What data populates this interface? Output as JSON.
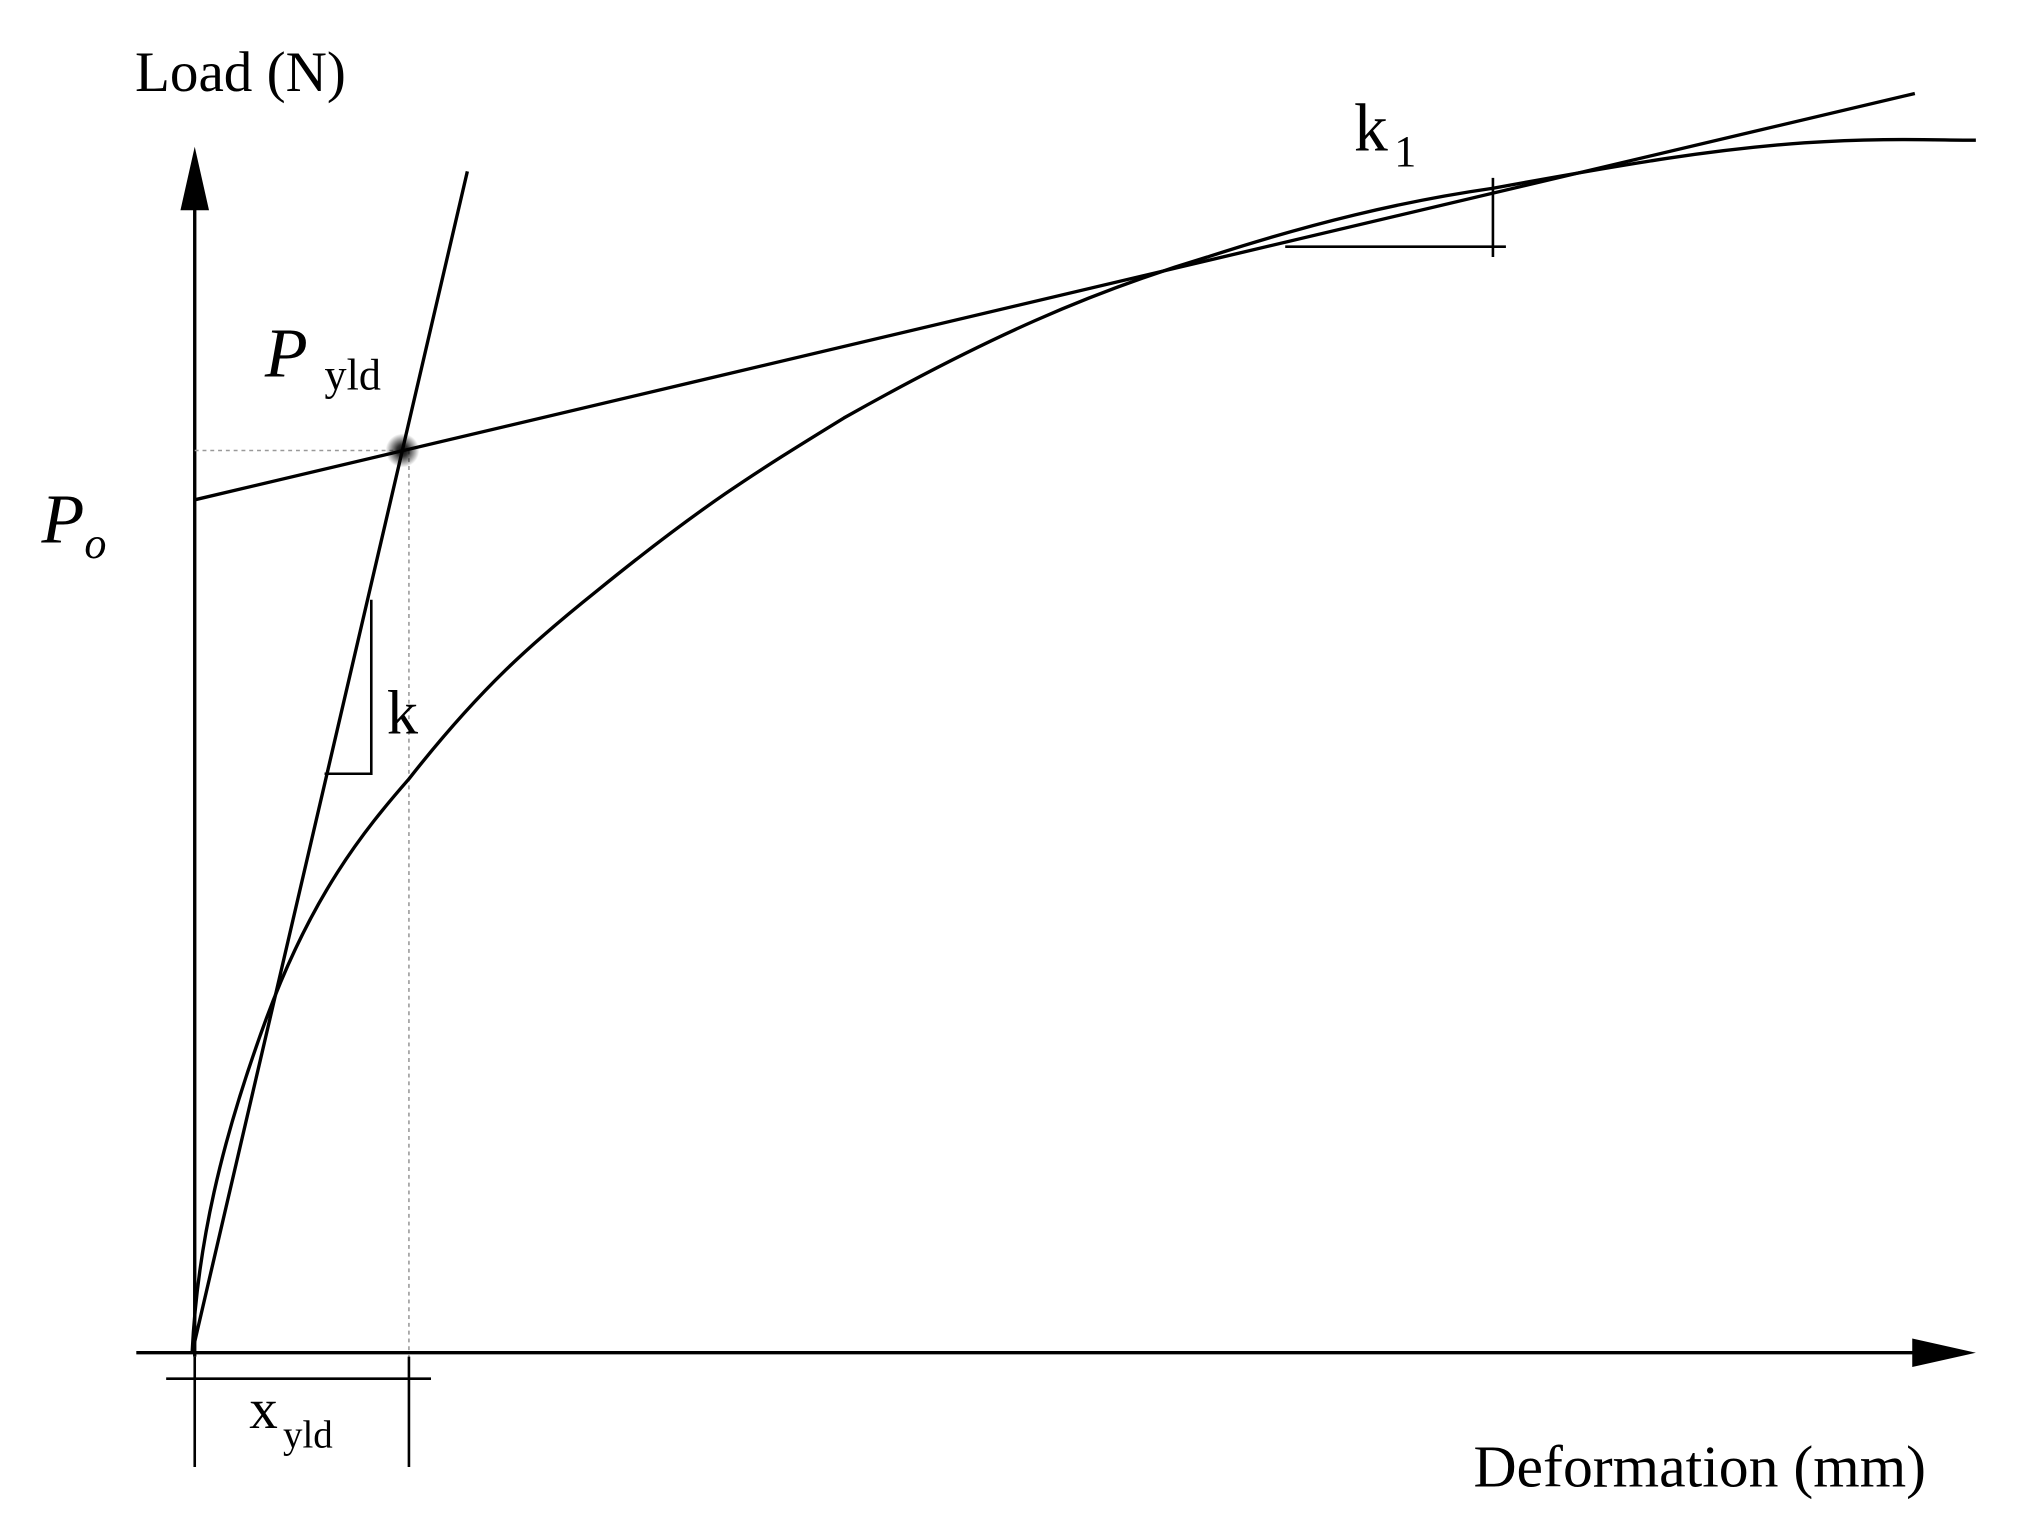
{
  "axes": {
    "y_label": "Load (N)",
    "x_label": "Deformation (mm)"
  },
  "labels": {
    "p_yld": {
      "main": "P",
      "sub": "yld"
    },
    "p_o": {
      "main": "P",
      "sub": "o"
    },
    "k": {
      "main": "k"
    },
    "k1": {
      "main": "k",
      "sub": "1"
    },
    "x_yld": {
      "main": "x",
      "sub": "yld"
    }
  }
}
